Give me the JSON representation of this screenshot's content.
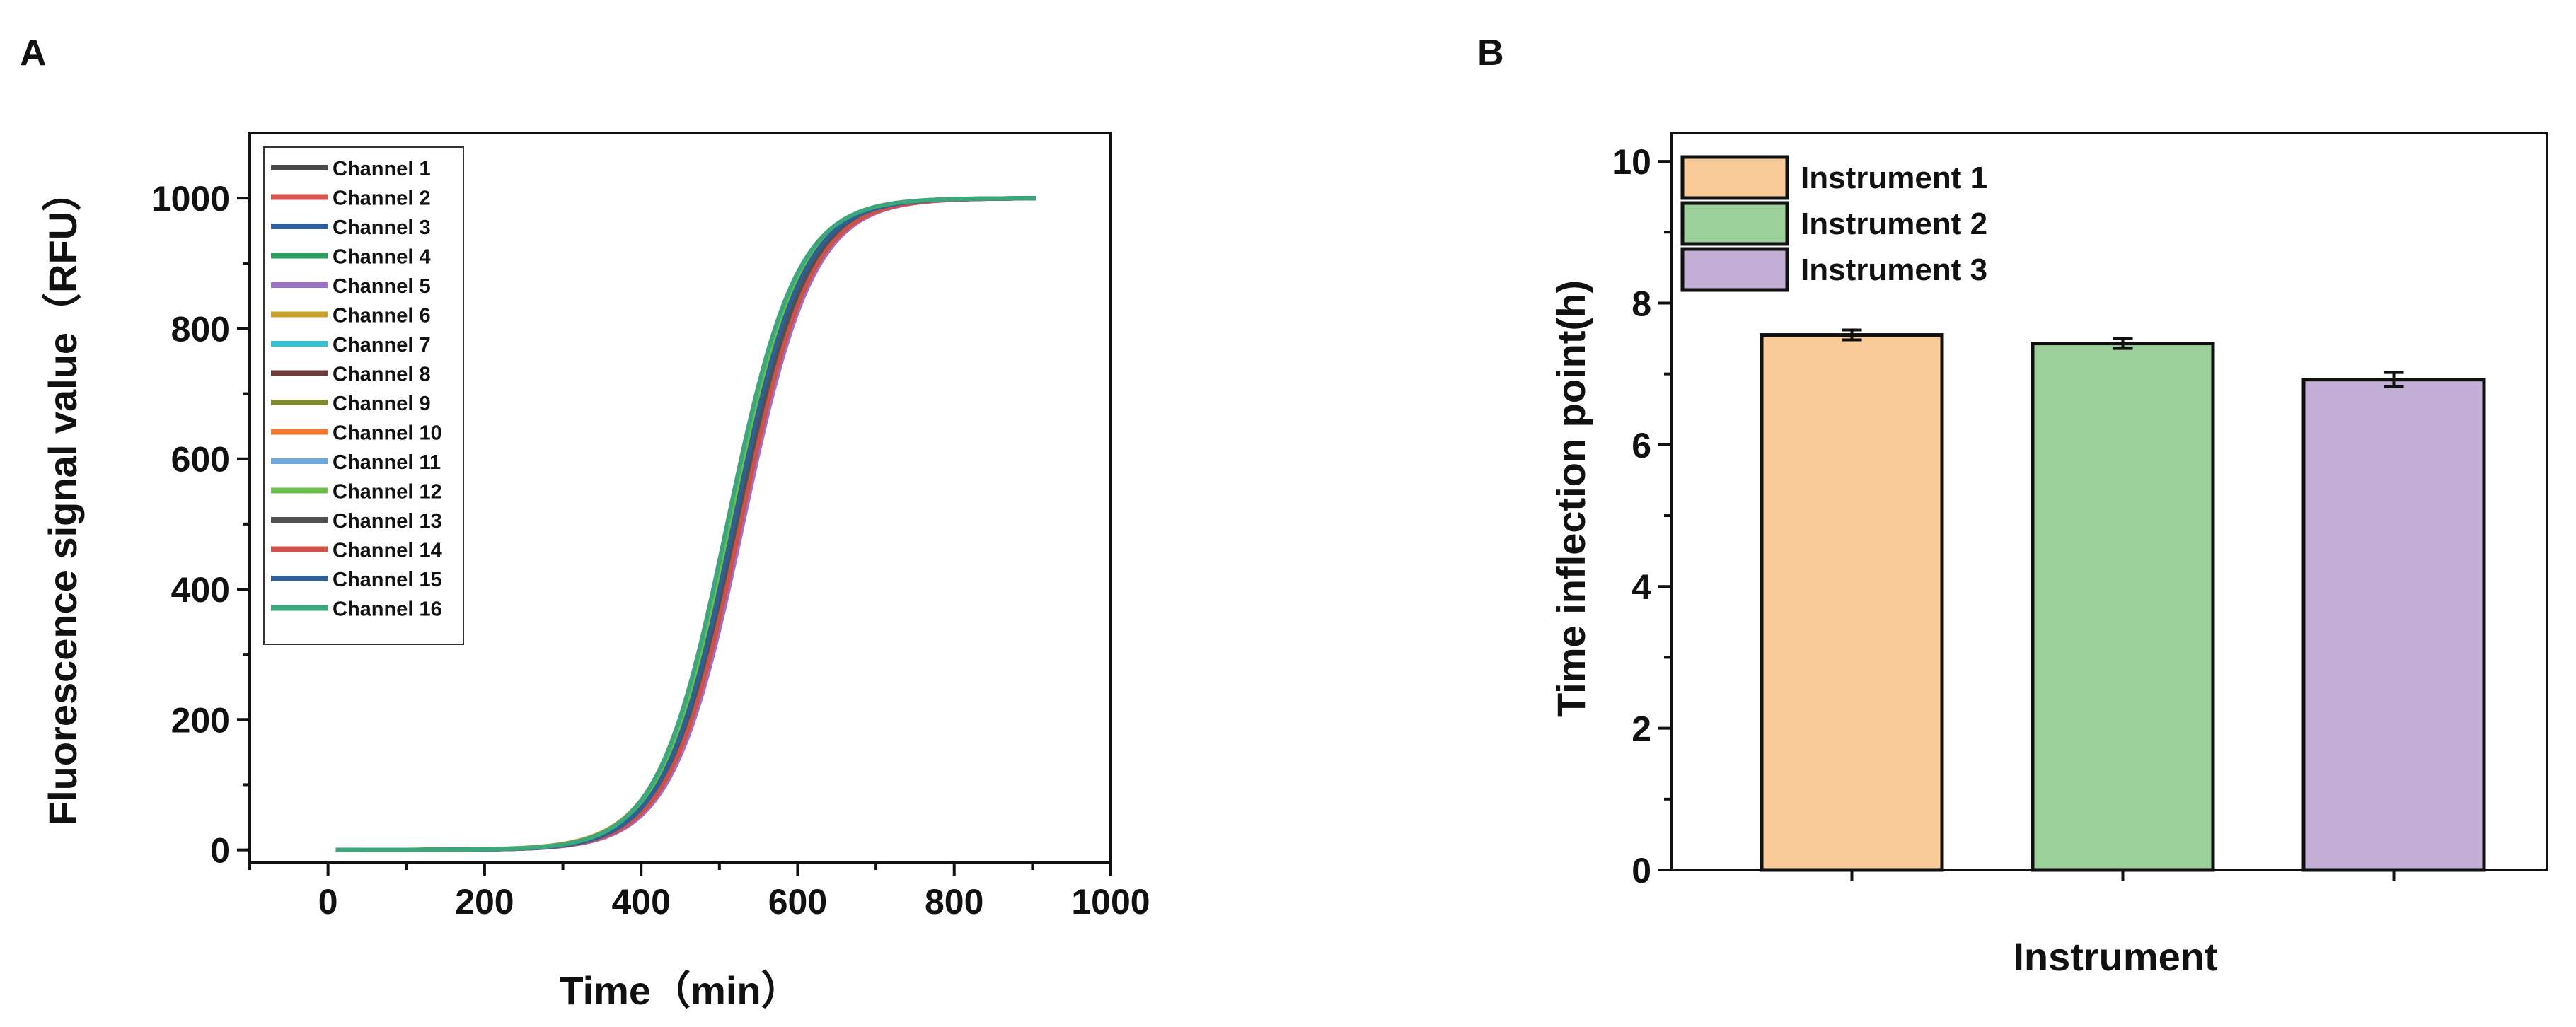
{
  "chart_data": [
    {
      "panel_label": "A",
      "type": "line",
      "xlabel": "Time（min）",
      "ylabel": "Fluorescence signal value（RFU）",
      "xlim": [
        -100,
        1000
      ],
      "ylim": [
        -20,
        1100
      ],
      "xticks": [
        0,
        200,
        400,
        600,
        800,
        1000
      ],
      "yticks": [
        0,
        200,
        400,
        600,
        800,
        1000
      ],
      "grid": false,
      "legend_position": "top-left",
      "x_range": [
        10,
        905
      ],
      "series": [
        {
          "name": "Channel 1",
          "color": "#4a4a4a",
          "midpoint": 525,
          "scale": 45,
          "max": 1000
        },
        {
          "name": "Channel 2",
          "color": "#d9534f",
          "midpoint": 528,
          "scale": 45,
          "max": 1000
        },
        {
          "name": "Channel 3",
          "color": "#2f5f9e",
          "midpoint": 520,
          "scale": 44,
          "max": 1000
        },
        {
          "name": "Channel 4",
          "color": "#2e9e5e",
          "midpoint": 512,
          "scale": 44,
          "max": 1000
        },
        {
          "name": "Channel 5",
          "color": "#9b72c8",
          "midpoint": 530,
          "scale": 45,
          "max": 1000
        },
        {
          "name": "Channel 6",
          "color": "#c9a227",
          "midpoint": 515,
          "scale": 46,
          "max": 1000
        },
        {
          "name": "Channel 7",
          "color": "#35c0cf",
          "midpoint": 514,
          "scale": 44,
          "max": 1000
        },
        {
          "name": "Channel 8",
          "color": "#6e3b3b",
          "midpoint": 526,
          "scale": 45,
          "max": 1000
        },
        {
          "name": "Channel 9",
          "color": "#808a2e",
          "midpoint": 517,
          "scale": 45,
          "max": 1000
        },
        {
          "name": "Channel 10",
          "color": "#f07a2f",
          "midpoint": 519,
          "scale": 45,
          "max": 1000
        },
        {
          "name": "Channel 11",
          "color": "#6fa8dc",
          "midpoint": 516,
          "scale": 44,
          "max": 1000
        },
        {
          "name": "Channel 12",
          "color": "#6cc04a",
          "midpoint": 513,
          "scale": 44,
          "max": 1000
        },
        {
          "name": "Channel 13",
          "color": "#505050",
          "midpoint": 522,
          "scale": 45,
          "max": 1000
        },
        {
          "name": "Channel 14",
          "color": "#d0504a",
          "midpoint": 527,
          "scale": 45,
          "max": 1000
        },
        {
          "name": "Channel 15",
          "color": "#2e5f95",
          "midpoint": 518,
          "scale": 44,
          "max": 1000
        },
        {
          "name": "Channel 16",
          "color": "#3aa87a",
          "midpoint": 510,
          "scale": 44,
          "max": 1000
        }
      ]
    },
    {
      "panel_label": "B",
      "type": "bar",
      "xlabel": "Instrument",
      "ylabel": "Time inflection point(h)",
      "ylim": [
        0,
        10.4
      ],
      "yticks": [
        0,
        2,
        4,
        6,
        8,
        10
      ],
      "grid": false,
      "legend_position": "top-left",
      "categories": [
        "Instrument 1",
        "Instrument 2",
        "Instrument 3"
      ],
      "values": [
        7.55,
        7.43,
        6.92
      ],
      "errors": [
        0.07,
        0.07,
        0.1
      ],
      "colors": [
        "#f8cb98",
        "#9bd09b",
        "#c3afd6"
      ]
    }
  ]
}
